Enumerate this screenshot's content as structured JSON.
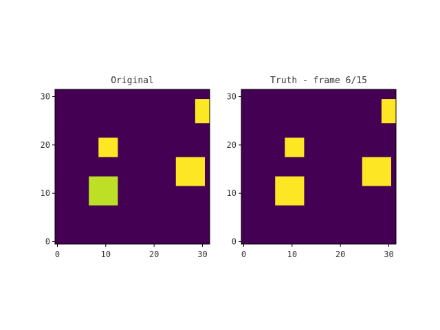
{
  "chart_data": [
    {
      "type": "heatmap",
      "title": "Original",
      "xlabel": "",
      "ylabel": "",
      "grid_size": [
        32,
        32
      ],
      "xlim": [
        -0.5,
        31.5
      ],
      "ylim": [
        -0.5,
        31.5
      ],
      "origin": "lower",
      "x_ticks": [
        0,
        10,
        20,
        30
      ],
      "y_ticks": [
        0,
        10,
        20,
        30
      ],
      "grid": false,
      "colormap": "viridis",
      "background_value": 0,
      "background_color": "#440154",
      "cells": [
        {
          "x0": 7,
          "x1": 12,
          "y0": 8,
          "y1": 13,
          "value": 0.88,
          "color": "#bddf26"
        },
        {
          "x0": 9,
          "x1": 12,
          "y0": 18,
          "y1": 21,
          "value": 1,
          "color": "#fde725"
        },
        {
          "x0": 25,
          "x1": 30,
          "y0": 12,
          "y1": 17,
          "value": 1,
          "color": "#fde725"
        },
        {
          "x0": 29,
          "x1": 31,
          "y0": 25,
          "y1": 29,
          "value": 1,
          "color": "#fde725"
        }
      ]
    },
    {
      "type": "heatmap",
      "title": "Truth - frame 6/15",
      "xlabel": "",
      "ylabel": "",
      "grid_size": [
        32,
        32
      ],
      "xlim": [
        -0.5,
        31.5
      ],
      "ylim": [
        -0.5,
        31.5
      ],
      "origin": "lower",
      "x_ticks": [
        0,
        10,
        20,
        30
      ],
      "y_ticks": [
        0,
        10,
        20,
        30
      ],
      "grid": false,
      "colormap": "viridis",
      "background_value": 0,
      "background_color": "#440154",
      "cells": [
        {
          "x0": 7,
          "x1": 12,
          "y0": 8,
          "y1": 13,
          "value": 1,
          "color": "#fde725"
        },
        {
          "x0": 9,
          "x1": 12,
          "y0": 18,
          "y1": 21,
          "value": 1,
          "color": "#fde725"
        },
        {
          "x0": 25,
          "x1": 30,
          "y0": 12,
          "y1": 17,
          "value": 1,
          "color": "#fde725"
        },
        {
          "x0": 29,
          "x1": 31,
          "y0": 25,
          "y1": 29,
          "value": 1,
          "color": "#fde725"
        }
      ]
    }
  ]
}
